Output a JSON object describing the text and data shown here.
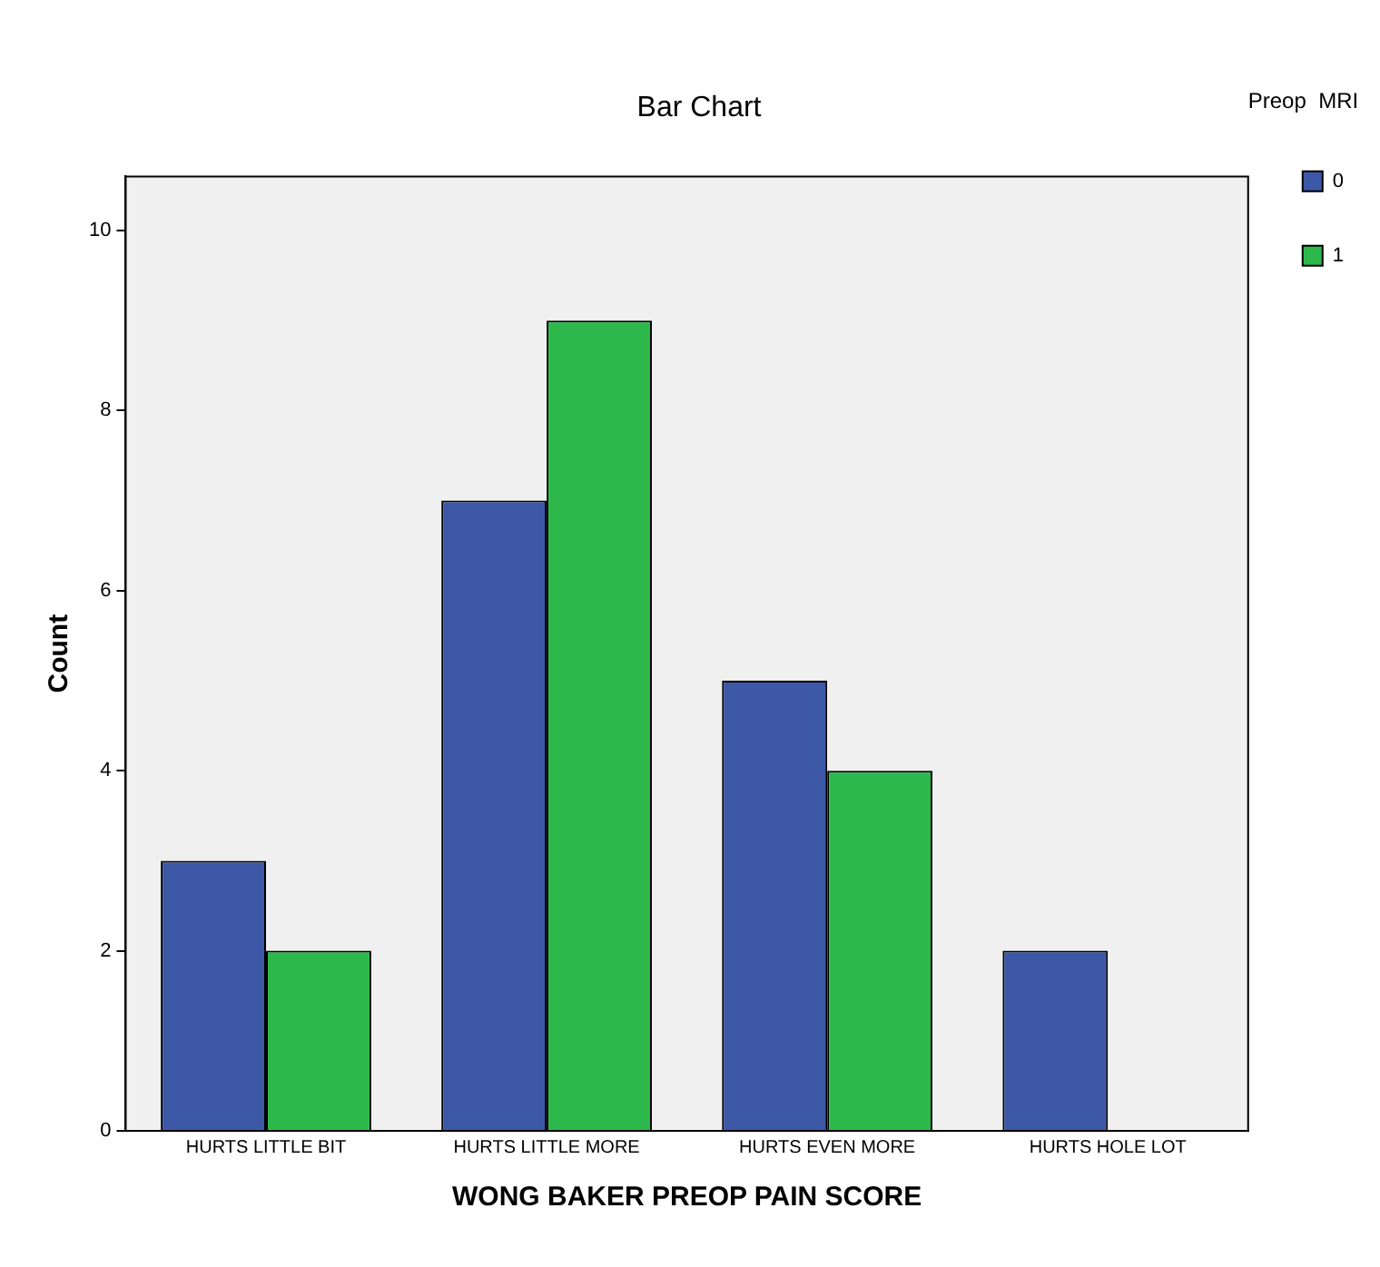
{
  "chart_data": {
    "type": "bar",
    "title": "Bar Chart",
    "xlabel": "WONG BAKER PREOP PAIN SCORE",
    "ylabel": "Count",
    "legend_title": "Preop  MRI",
    "categories": [
      "HURTS LITTLE BIT",
      "HURTS LITTLE MORE",
      "HURTS EVEN MORE",
      "HURTS HOLE LOT"
    ],
    "series": [
      {
        "name": "0",
        "color": "#3e58a8",
        "values": [
          3,
          7,
          5,
          2
        ]
      },
      {
        "name": "1",
        "color": "#2db84b",
        "values": [
          2,
          9,
          4,
          0
        ]
      }
    ],
    "ylim": [
      0,
      10.6
    ],
    "yticks": [
      0,
      2,
      4,
      6,
      8,
      10
    ],
    "grid": false,
    "legend": "top right"
  }
}
